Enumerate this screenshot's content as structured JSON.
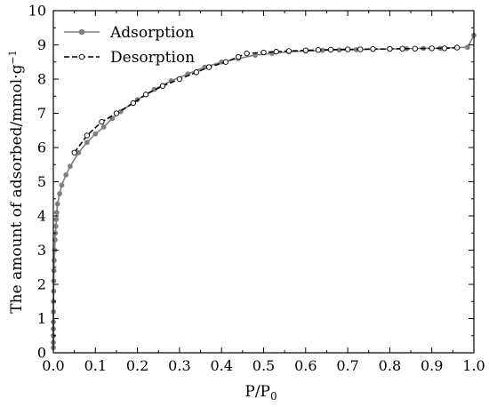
{
  "chart_data": {
    "type": "line",
    "xlabel_main": "P/P",
    "xlabel_sub": "0",
    "ylabel_main": "The amount of adsorbed/mmol·g",
    "ylabel_sup": "−1",
    "xlim": [
      0.0,
      1.0
    ],
    "ylim": [
      0,
      10
    ],
    "x_ticks": [
      "0.0",
      "0.1",
      "0.2",
      "0.3",
      "0.4",
      "0.5",
      "0.6",
      "0.7",
      "0.8",
      "0.9",
      "1.0"
    ],
    "y_ticks": [
      "0",
      "1",
      "2",
      "3",
      "4",
      "5",
      "6",
      "7",
      "8",
      "9",
      "10"
    ],
    "grid": false,
    "legend_position": "top-left",
    "series": [
      {
        "name": "Adsorption",
        "color": "#7f7f7f",
        "line_style": "solid",
        "marker": "filled-circle",
        "x": [
          1e-05,
          2e-05,
          4e-05,
          6e-05,
          0.0001,
          0.0002,
          0.0004,
          0.0007,
          0.001,
          0.0015,
          0.002,
          0.003,
          0.004,
          0.005,
          0.006,
          0.007,
          0.008,
          0.01,
          0.015,
          0.02,
          0.03,
          0.04,
          0.06,
          0.08,
          0.1,
          0.12,
          0.14,
          0.16,
          0.2,
          0.24,
          0.28,
          0.32,
          0.36,
          0.4,
          0.44,
          0.48,
          0.52,
          0.56,
          0.6,
          0.64,
          0.68,
          0.72,
          0.76,
          0.8,
          0.84,
          0.88,
          0.92,
          0.96,
          0.985,
          1.0
        ],
        "y": [
          0.15,
          0.3,
          0.5,
          0.7,
          0.9,
          1.2,
          1.5,
          1.8,
          2.1,
          2.4,
          2.7,
          3.0,
          3.3,
          3.5,
          3.7,
          3.9,
          4.1,
          4.35,
          4.65,
          4.9,
          5.2,
          5.45,
          5.85,
          6.15,
          6.4,
          6.6,
          6.85,
          7.05,
          7.4,
          7.7,
          7.95,
          8.15,
          8.35,
          8.5,
          8.6,
          8.7,
          8.75,
          8.8,
          8.82,
          8.84,
          8.85,
          8.86,
          8.87,
          8.88,
          8.89,
          8.9,
          8.9,
          8.92,
          8.93,
          9.28
        ]
      },
      {
        "name": "Desorption",
        "color": "#000000",
        "line_style": "dashed",
        "marker": "open-circle",
        "x": [
          0.05,
          0.08,
          0.115,
          0.15,
          0.19,
          0.22,
          0.26,
          0.3,
          0.34,
          0.37,
          0.41,
          0.44,
          0.46,
          0.5,
          0.53,
          0.56,
          0.6,
          0.63,
          0.66,
          0.7,
          0.73,
          0.76,
          0.8,
          0.83,
          0.86,
          0.9,
          0.93,
          0.96
        ],
        "y": [
          5.85,
          6.35,
          6.75,
          7.0,
          7.3,
          7.55,
          7.8,
          8.0,
          8.2,
          8.35,
          8.5,
          8.65,
          8.75,
          8.78,
          8.8,
          8.82,
          8.84,
          8.85,
          8.86,
          8.87,
          8.87,
          8.88,
          8.88,
          8.89,
          8.89,
          8.9,
          8.9,
          8.92
        ]
      }
    ]
  }
}
